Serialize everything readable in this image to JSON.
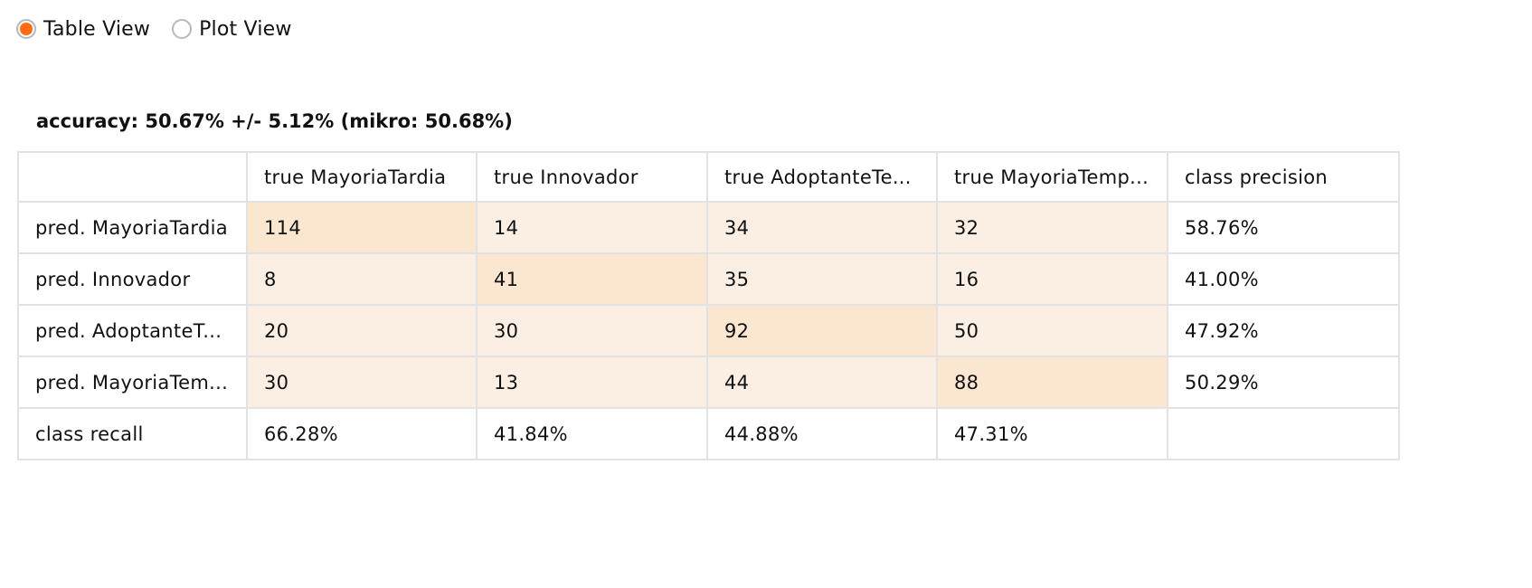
{
  "view_toggle": {
    "options": [
      {
        "label": "Table View",
        "selected": true
      },
      {
        "label": "Plot View",
        "selected": false
      }
    ],
    "accent_color": "#ff6a13"
  },
  "accuracy_text": "accuracy: 50.67% +/- 5.12% (mikro: 50.68%)",
  "matrix": {
    "header": [
      "",
      "true MayoriaTardia",
      "true Innovador",
      "true AdoptanteTe...",
      "true MayoriaTemp...",
      "class precision"
    ],
    "rows": [
      {
        "label": "pred. MayoriaTardia",
        "cells": [
          "114",
          "14",
          "34",
          "32"
        ],
        "precision": "58.76%"
      },
      {
        "label": "pred. Innovador",
        "cells": [
          "8",
          "41",
          "35",
          "16"
        ],
        "precision": "41.00%"
      },
      {
        "label": "pred. AdoptanteT...",
        "cells": [
          "20",
          "30",
          "92",
          "50"
        ],
        "precision": "47.92%"
      },
      {
        "label": "pred. MayoriaTem...",
        "cells": [
          "30",
          "13",
          "44",
          "88"
        ],
        "precision": "50.29%"
      }
    ],
    "recall_label": "class recall",
    "recall": [
      "66.28%",
      "41.84%",
      "44.88%",
      "47.31%",
      ""
    ],
    "colors": {
      "diagonal": "#fbe7d0",
      "off_diagonal": "#faefe2",
      "border": "#e2e2e2"
    }
  }
}
